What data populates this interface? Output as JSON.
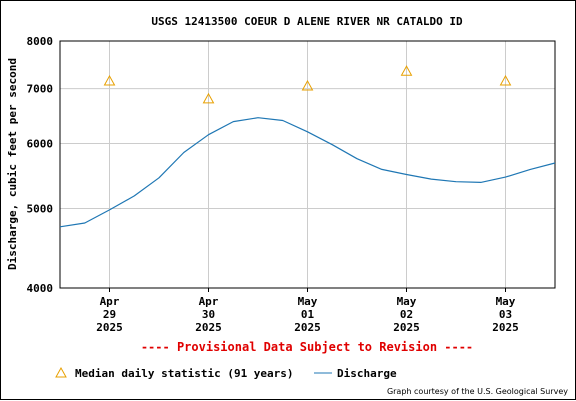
{
  "chart_data": {
    "type": "line",
    "title": "USGS 12413500 COEUR D ALENE RIVER NR CATALDO ID",
    "ylabel": "Discharge, cubic feet per second",
    "xlabel": "",
    "yscale": "log",
    "ylim": [
      4000,
      8000
    ],
    "yticks": [
      {
        "value": 4000,
        "label": "4000"
      },
      {
        "value": 5000,
        "label": "5000"
      },
      {
        "value": 6000,
        "label": "6000"
      },
      {
        "value": 7000,
        "label": "7000"
      },
      {
        "value": 8000,
        "label": "8000"
      }
    ],
    "xlim": [
      "2025-04-28T12:00",
      "2025-05-03T12:00"
    ],
    "xticks": [
      {
        "date": "2025-04-29",
        "lines": [
          "Apr",
          "29",
          "2025"
        ]
      },
      {
        "date": "2025-04-30",
        "lines": [
          "Apr",
          "30",
          "2025"
        ]
      },
      {
        "date": "2025-05-01",
        "lines": [
          "May",
          "01",
          "2025"
        ]
      },
      {
        "date": "2025-05-02",
        "lines": [
          "May",
          "02",
          "2025"
        ]
      },
      {
        "date": "2025-05-03",
        "lines": [
          "May",
          "03",
          "2025"
        ]
      }
    ],
    "grid": true,
    "series": [
      {
        "name": "Discharge",
        "color": "#1f77b4",
        "x": [
          "2025-04-28T12:00",
          "2025-04-28T18:00",
          "2025-04-29T00:00",
          "2025-04-29T06:00",
          "2025-04-29T12:00",
          "2025-04-29T18:00",
          "2025-04-30T00:00",
          "2025-04-30T06:00",
          "2025-04-30T12:00",
          "2025-04-30T18:00",
          "2025-05-01T00:00",
          "2025-05-01T06:00",
          "2025-05-01T12:00",
          "2025-05-01T18:00",
          "2025-05-02T00:00",
          "2025-05-02T06:00",
          "2025-05-02T12:00",
          "2025-05-02T18:00",
          "2025-05-03T00:00",
          "2025-05-03T06:00",
          "2025-05-03T12:00"
        ],
        "y": [
          4750,
          4800,
          4980,
          5180,
          5450,
          5850,
          6150,
          6380,
          6450,
          6400,
          6200,
          5980,
          5750,
          5580,
          5500,
          5430,
          5390,
          5380,
          5460,
          5580,
          5680
        ]
      }
    ],
    "markers": {
      "name": "Median daily statistic (91 years)",
      "symbol": "triangle",
      "color": "#e8a000",
      "x": [
        "2025-04-29T00:00",
        "2025-04-30T00:00",
        "2025-05-01T00:00",
        "2025-05-02T00:00",
        "2025-05-03T00:00"
      ],
      "y": [
        7150,
        6800,
        7050,
        7350,
        7150
      ]
    },
    "annotations": [
      {
        "text": "---- Provisional Data Subject to Revision ----",
        "color": "#e00000"
      },
      {
        "text": "Graph courtesy of the U.S. Geological Survey"
      }
    ],
    "legend_placement": "bottom-left"
  }
}
